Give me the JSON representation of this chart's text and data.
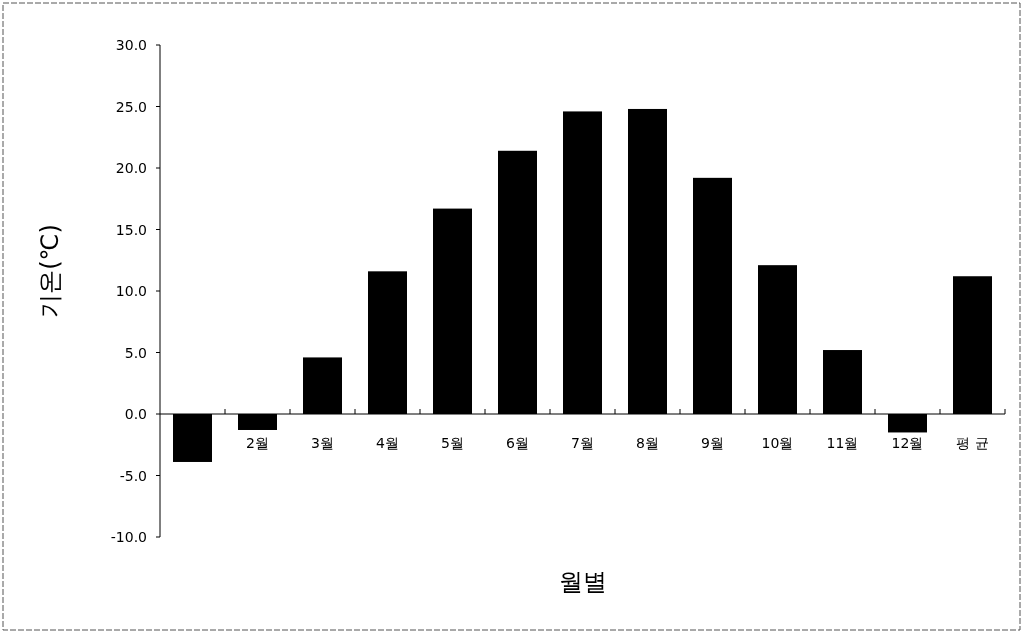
{
  "chart_data": {
    "type": "bar",
    "xlabel": "월별",
    "ylabel": "기온(℃)",
    "color": "#000000",
    "categories": [
      null,
      "2월",
      "3월",
      "4월",
      "5월",
      "6월",
      "7월",
      "8월",
      "9월",
      "10월",
      "11월",
      "12월",
      "평 균"
    ],
    "values": [
      -3.9,
      -1.3,
      4.6,
      11.6,
      16.7,
      21.4,
      24.6,
      24.8,
      19.2,
      12.1,
      5.2,
      -1.5,
      11.2
    ],
    "ylim": [
      -10,
      30
    ],
    "yticks": [
      {
        "value": -10,
        "label": "-10.0"
      },
      {
        "value": -5,
        "label": "-5.0"
      },
      {
        "value": 0,
        "label": "0.0"
      },
      {
        "value": 5,
        "label": "5.0"
      },
      {
        "value": 10,
        "label": "10.0"
      },
      {
        "value": 15,
        "label": "15.0"
      },
      {
        "value": 20,
        "label": "20.0"
      },
      {
        "value": 25,
        "label": "25.0"
      },
      {
        "value": 30,
        "label": "30.0"
      }
    ]
  }
}
